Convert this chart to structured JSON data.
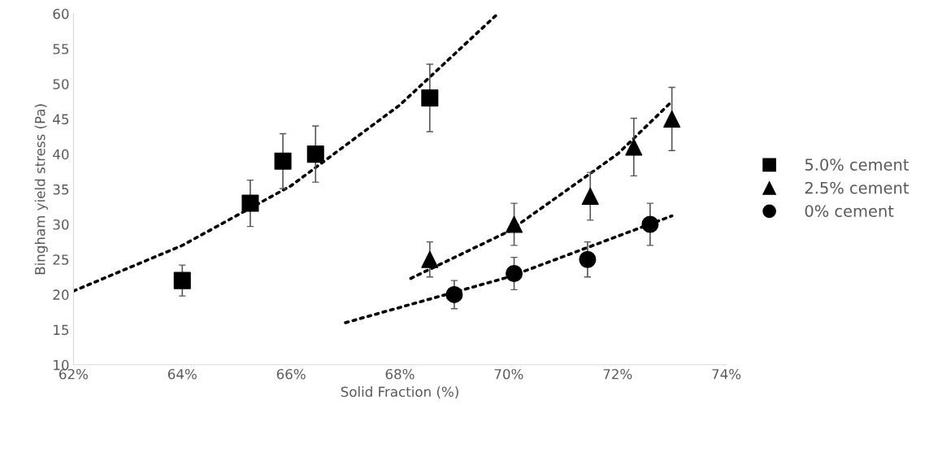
{
  "chart_data": {
    "type": "scatter",
    "xlabel": "Solid Fraction (%)",
    "ylabel": "Bingham yield stress (Pa)",
    "xlim": [
      62,
      74
    ],
    "xticks": [
      {
        "value": 62,
        "label": "62%"
      },
      {
        "value": 64,
        "label": "64%"
      },
      {
        "value": 66,
        "label": "66%"
      },
      {
        "value": 68,
        "label": "68%"
      },
      {
        "value": 70,
        "label": "70%"
      },
      {
        "value": 72,
        "label": "72%"
      },
      {
        "value": 74,
        "label": "74%"
      }
    ],
    "ylim": [
      10,
      60
    ],
    "yticks": [
      10,
      15,
      20,
      25,
      30,
      35,
      40,
      45,
      50,
      55,
      60
    ],
    "grid": false,
    "legend": "right",
    "series": [
      {
        "name": "5.0% cement",
        "color": "#000000",
        "marker": "square",
        "x": [
          64.0,
          65.25,
          65.85,
          66.45,
          68.55
        ],
        "values": [
          22,
          33,
          39,
          40,
          48
        ],
        "errors": [
          2.2,
          3.3,
          3.9,
          4.0,
          4.8
        ]
      },
      {
        "name": "2.5% cement",
        "color": "#000000",
        "marker": "triangle",
        "x": [
          68.55,
          70.1,
          71.5,
          72.3,
          73.0
        ],
        "values": [
          25,
          30,
          34,
          41,
          45
        ],
        "errors": [
          2.5,
          3.0,
          3.4,
          4.1,
          4.5
        ]
      },
      {
        "name": "0% cement",
        "color": "#000000",
        "marker": "circle",
        "x": [
          69.0,
          70.1,
          71.45,
          72.6
        ],
        "values": [
          20,
          23,
          25,
          30
        ],
        "errors": [
          2.0,
          2.3,
          2.5,
          3.0
        ]
      },
      {
        "type": "line",
        "line_style": "dotted",
        "color": "#000000",
        "x": [
          62,
          64,
          66,
          68,
          69.8
        ],
        "values": [
          20.5,
          27,
          35.5,
          47,
          60
        ]
      },
      {
        "type": "line",
        "line_style": "dotted",
        "color": "#000000",
        "x": [
          68.2,
          70,
          72,
          73
        ],
        "values": [
          22.3,
          29,
          40,
          47.5
        ]
      },
      {
        "type": "line",
        "line_style": "dotted",
        "color": "#000000",
        "x": [
          67,
          70,
          73
        ],
        "values": [
          16,
          22.5,
          31.2
        ]
      }
    ]
  }
}
